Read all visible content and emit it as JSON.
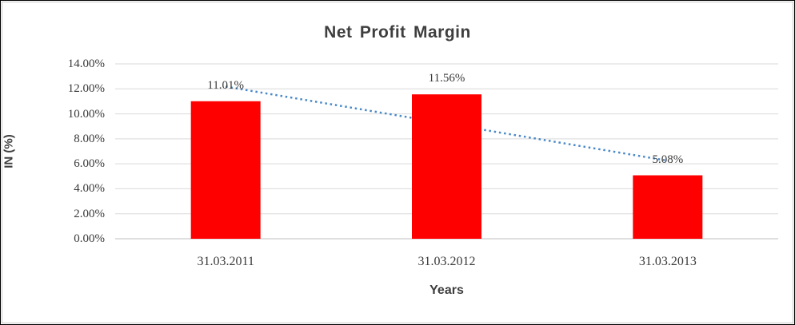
{
  "chart_data": {
    "type": "bar",
    "title": "Net Profit Margin",
    "xlabel": "Years",
    "ylabel": "IN (%)",
    "categories": [
      "31.03.2011",
      "31.03.2012",
      "31.03.2013"
    ],
    "values": [
      11.01,
      11.56,
      5.08
    ],
    "data_labels": [
      "11.01%",
      "11.56%",
      "5.08%"
    ],
    "ylim": [
      0,
      14
    ],
    "ytick_step": 2,
    "ytick_labels": [
      "0.00%",
      "2.00%",
      "4.00%",
      "6.00%",
      "8.00%",
      "10.00%",
      "12.00%",
      "14.00%"
    ],
    "grid": true,
    "legend": false,
    "colors": {
      "bar": "#ff0000",
      "trendline": "#4a89c7",
      "gridline": "#d9d9d9",
      "axis_line": "#bfbfbf",
      "text": "#3a3a3a",
      "title_text": "#3f3f3f"
    },
    "trendline": {
      "type": "linear",
      "style": "dotted",
      "start_value": 12.18,
      "end_value": 6.25,
      "drawn_behind_bars": true
    }
  }
}
